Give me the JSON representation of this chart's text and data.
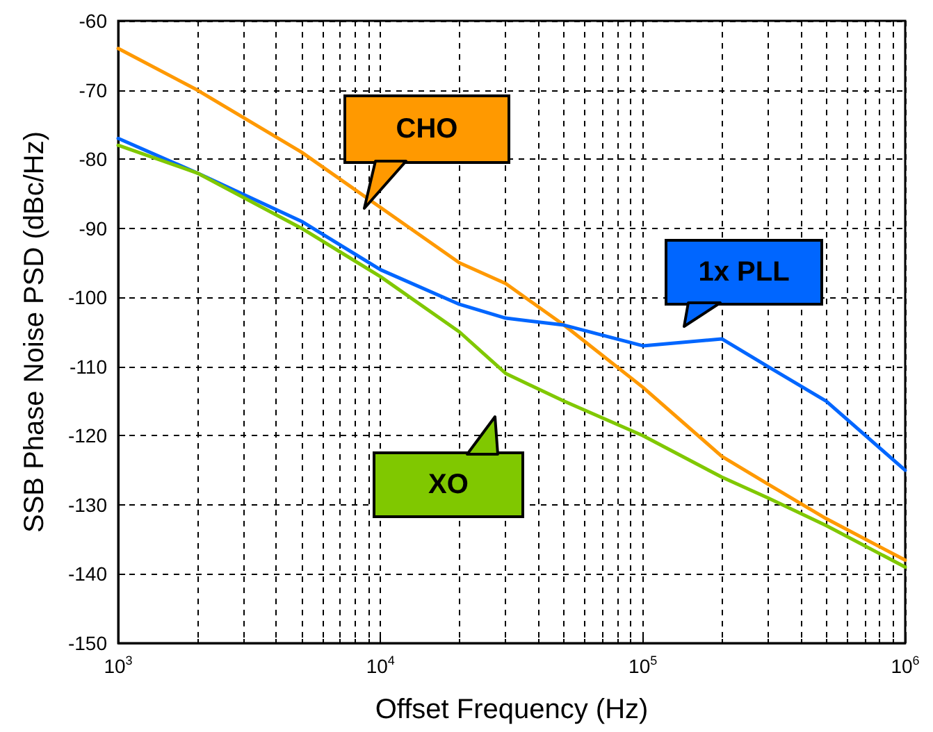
{
  "chart_data": {
    "type": "line",
    "xlabel": "Offset Frequency (Hz)",
    "ylabel": "SSB Phase Noise PSD (dBc/Hz)",
    "x": [
      1000,
      2000,
      5000,
      10000,
      20000,
      30000,
      50000,
      100000,
      200000,
      300000,
      500000,
      1000000
    ],
    "series": [
      {
        "color": "#ff9900",
        "values": [
          -64,
          -70,
          -79,
          -87,
          -95,
          -98,
          -104,
          -113,
          -123,
          -127,
          -132,
          -138
        ]
      },
      {
        "color": "#0066ff",
        "values": [
          -77,
          -82,
          -89,
          -96,
          -101,
          -103,
          -104,
          -107,
          -106,
          -110,
          -115,
          -125
        ]
      },
      {
        "color": "#80c800",
        "values": [
          -78,
          -82,
          -90,
          -97,
          -105,
          -111,
          -115,
          -120,
          -126,
          -129,
          -133,
          -139
        ]
      }
    ],
    "xlim": [
      1000,
      1000000
    ],
    "ylim": [
      -150,
      -60
    ],
    "xticks": [
      {
        "value": 1000,
        "label": "10$^{3}$"
      },
      {
        "value": 10000,
        "label": "10$^{4}$"
      },
      {
        "value": 100000,
        "label": "10$^{5}$"
      },
      {
        "value": 1000000,
        "label": "10$^{6}$"
      }
    ],
    "yticks": [
      -150,
      -140,
      -130,
      -120,
      -110,
      -100,
      -90,
      -80,
      -70,
      -60
    ],
    "log": "x",
    "grid": true,
    "marker": "none",
    "line_style": "solid",
    "annotations": [
      "CHO",
      "1x PLL",
      "XO"
    ]
  }
}
